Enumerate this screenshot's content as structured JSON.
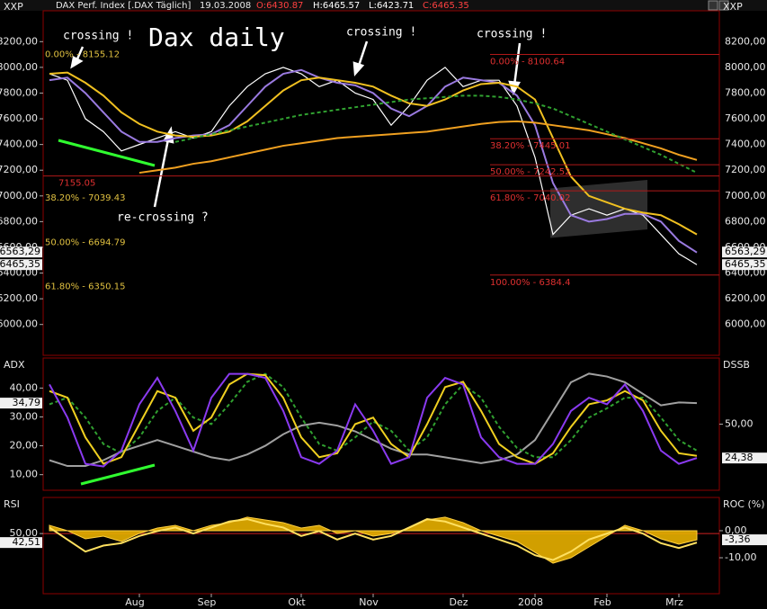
{
  "chart_data": [
    {
      "type": "line",
      "title": "DAX Perf. Index [.DAX  Täglich]",
      "date": "19.03.2008",
      "quote_labels": [
        "O:6430.87",
        "H:6465.57",
        "L:6423.71",
        "C:6465.35"
      ],
      "ylabel": "XXP",
      "categories": [
        null,
        null,
        null,
        null,
        null,
        "Aug",
        null,
        null,
        null,
        "Sep",
        null,
        null,
        null,
        null,
        "Okt",
        null,
        null,
        null,
        "Nov",
        null,
        null,
        null,
        null,
        "Dez",
        null,
        null,
        null,
        "2008",
        null,
        null,
        null,
        "Feb",
        null,
        null,
        null,
        "Mrz",
        null
      ],
      "ylim": [
        5760,
        8440
      ],
      "yticks": [
        {
          "value": 6000,
          "label": "6000,00"
        },
        {
          "value": 6200,
          "label": "6200,00"
        },
        {
          "value": 6400,
          "label": "6400,00"
        },
        {
          "value": 6600,
          "label": "6600,00"
        },
        {
          "value": 6800,
          "label": "6800,00"
        },
        {
          "value": 7000,
          "label": "7000,00"
        },
        {
          "value": 7200,
          "label": "7200,00"
        },
        {
          "value": 7400,
          "label": "7400,00"
        },
        {
          "value": 7600,
          "label": "7600,00"
        },
        {
          "value": 7800,
          "label": "7800,00"
        },
        {
          "value": 8000,
          "label": "8000,00"
        },
        {
          "value": 8200,
          "label": "8200,00"
        }
      ],
      "last_values": [
        {
          "value": 6563.29,
          "label": "6563,29"
        },
        {
          "value": 6465.35,
          "label": "6465,35"
        }
      ],
      "series": [
        {
          "color": "#ffffff",
          "values": [
            7950,
            7900,
            7600,
            7500,
            7350,
            7400,
            7450,
            7500,
            7450,
            7500,
            7700,
            7850,
            7950,
            8000,
            7950,
            7850,
            7900,
            7800,
            7750,
            7550,
            7700,
            7900,
            8000,
            7850,
            7900,
            7900,
            7700,
            7300,
            6700,
            6850,
            6900,
            6850,
            6900,
            6850,
            6700,
            6550,
            6465
          ]
        },
        {
          "color": "#9a7ae0",
          "values": [
            7900,
            7920,
            7800,
            7650,
            7500,
            7420,
            7420,
            7450,
            7470,
            7480,
            7550,
            7700,
            7850,
            7950,
            7980,
            7920,
            7880,
            7860,
            7800,
            7680,
            7620,
            7700,
            7850,
            7920,
            7900,
            7880,
            7780,
            7550,
            7100,
            6850,
            6800,
            6820,
            6860,
            6860,
            6800,
            6650,
            6560
          ]
        },
        {
          "color": "#f0c020",
          "values": [
            7950,
            7960,
            7880,
            7780,
            7650,
            7560,
            7500,
            7470,
            7460,
            7470,
            7500,
            7580,
            7700,
            7820,
            7900,
            7920,
            7900,
            7880,
            7850,
            7780,
            7720,
            7700,
            7750,
            7820,
            7870,
            7880,
            7850,
            7750,
            7450,
            7150,
            7000,
            6950,
            6900,
            6870,
            6850,
            6780,
            6700
          ]
        },
        {
          "color": "#f0a020",
          "values": [
            null,
            null,
            null,
            null,
            null,
            7180,
            7200,
            7220,
            7250,
            7270,
            7300,
            7330,
            7360,
            7390,
            7410,
            7430,
            7450,
            7460,
            7470,
            7480,
            7490,
            7500,
            7520,
            7540,
            7560,
            7575,
            7580,
            7570,
            7550,
            7530,
            7510,
            7480,
            7450,
            7410,
            7370,
            7320,
            7280
          ]
        },
        {
          "color": "#30a030",
          "dashed": true,
          "values": [
            null,
            null,
            null,
            null,
            null,
            null,
            null,
            7420,
            7450,
            7480,
            7510,
            7540,
            7570,
            7600,
            7630,
            7650,
            7670,
            7690,
            7710,
            7730,
            7750,
            7760,
            7770,
            7780,
            7780,
            7770,
            7750,
            7720,
            7680,
            7620,
            7560,
            7500,
            7440,
            7380,
            7320,
            7250,
            7180
          ]
        }
      ],
      "annotations": [
        {
          "text": "0.00% - 8155.12",
          "value": 8155.12,
          "color": "#e0c040"
        },
        {
          "text": "7155.05",
          "value": 7155.05,
          "color": "#e03030"
        },
        {
          "text": "38.20% - 7039.43",
          "value": 7039.43,
          "color": "#e0c040"
        },
        {
          "text": "50.00% - 6694.79",
          "value": 6694.79,
          "color": "#e0c040"
        },
        {
          "text": "61.80% - 6350.15",
          "value": 6350.15,
          "color": "#e0c040"
        },
        {
          "text": "0.00% - 8100.64",
          "value": 8100.64,
          "color": "#e03030"
        },
        {
          "text": "38.20% - 7445.01",
          "value": 7445.01,
          "color": "#e03030"
        },
        {
          "text": "50.00% - 7242.52",
          "value": 7242.52,
          "color": "#e03030"
        },
        {
          "text": "61.80% - 7040.02",
          "value": 7040.02,
          "color": "#e03030"
        },
        {
          "text": "100.00% - 6384.4",
          "value": 6384.4,
          "color": "#e03030"
        }
      ],
      "notes": [
        "crossing !",
        "crossing !",
        "crossing !",
        "Dax daily",
        "re-crossing ?"
      ]
    },
    {
      "type": "line",
      "ylabel": "ADX",
      "y2label": "DSSB",
      "ylim": [
        4.6,
        50.4
      ],
      "yticks": [
        {
          "value": 10,
          "label": "10,00"
        },
        {
          "value": 20,
          "label": "20,00"
        },
        {
          "value": 30,
          "label": "30,00"
        },
        {
          "value": 40,
          "label": "40,00"
        }
      ],
      "y2lim": [
        0,
        100
      ],
      "y2ticks": [
        {
          "value": 50,
          "label": "50,00"
        }
      ],
      "last_values": [
        {
          "value": 34.79,
          "label": "34,79"
        },
        {
          "value": 24.38,
          "label": "24,38",
          "axis": "y2"
        }
      ],
      "series": [
        {
          "color": "#a0a0a0",
          "values": [
            15,
            13,
            13,
            15,
            18,
            20,
            22,
            20,
            18,
            16,
            15,
            17,
            20,
            24,
            27,
            28,
            27,
            25,
            22,
            19,
            17,
            17,
            16,
            15,
            14,
            15,
            17,
            22,
            32,
            42,
            45,
            44,
            42,
            38,
            34,
            35,
            34.8
          ]
        },
        {
          "color": "#30a030",
          "dashed": true,
          "axis": "y2",
          "values": [
            65,
            70,
            55,
            35,
            28,
            40,
            60,
            70,
            55,
            50,
            65,
            82,
            88,
            78,
            55,
            35,
            30,
            40,
            52,
            45,
            30,
            40,
            65,
            80,
            70,
            48,
            32,
            25,
            25,
            38,
            55,
            62,
            70,
            70,
            55,
            38,
            30
          ]
        },
        {
          "color": "#f0d020",
          "axis": "y2",
          "values": [
            75,
            70,
            40,
            20,
            25,
            50,
            75,
            70,
            45,
            55,
            80,
            88,
            87,
            70,
            40,
            25,
            28,
            50,
            55,
            35,
            25,
            50,
            78,
            82,
            60,
            35,
            25,
            20,
            28,
            48,
            65,
            68,
            75,
            68,
            45,
            28,
            26
          ]
        },
        {
          "color": "#8a3af0",
          "axis": "y2",
          "values": [
            80,
            55,
            20,
            18,
            30,
            65,
            85,
            60,
            30,
            70,
            88,
            88,
            85,
            60,
            25,
            20,
            30,
            65,
            45,
            20,
            25,
            70,
            85,
            80,
            40,
            25,
            20,
            20,
            35,
            60,
            70,
            65,
            80,
            60,
            30,
            20,
            24.4
          ]
        }
      ]
    },
    {
      "type": "area",
      "ylabel": "RSI",
      "y2label": "ROC (%)",
      "ylim": [
        0,
        80
      ],
      "yticks": [
        {
          "value": 50,
          "label": "50,00"
        }
      ],
      "y2lim": [
        -23.3,
        12.3
      ],
      "y2ticks": [
        {
          "value": 0,
          "label": "0,00"
        },
        {
          "value": -10,
          "label": "-10,00"
        }
      ],
      "last_values": [
        {
          "value": 42.51,
          "label": "42,51"
        },
        {
          "value": -3.36,
          "label": "-3,36",
          "axis": "y2"
        }
      ],
      "series": [
        {
          "color": "#e8b000",
          "axis": "y2",
          "values": [
            2,
            0,
            -3,
            -2,
            -4,
            -1,
            1,
            2,
            0,
            2,
            3,
            5,
            4,
            3,
            1,
            2,
            -1,
            0,
            -2,
            -1,
            1,
            4,
            5,
            3,
            0,
            -2,
            -4,
            -8,
            -12,
            -10,
            -6,
            -2,
            2,
            0,
            -3,
            -5,
            -3.36
          ]
        },
        {
          "color": "#ffe060",
          "values": [
            55,
            45,
            35,
            40,
            42,
            48,
            52,
            55,
            50,
            55,
            60,
            62,
            58,
            55,
            48,
            52,
            45,
            50,
            45,
            48,
            55,
            62,
            60,
            55,
            50,
            45,
            40,
            32,
            28,
            35,
            45,
            50,
            55,
            50,
            42,
            38,
            42.51
          ]
        }
      ]
    }
  ]
}
